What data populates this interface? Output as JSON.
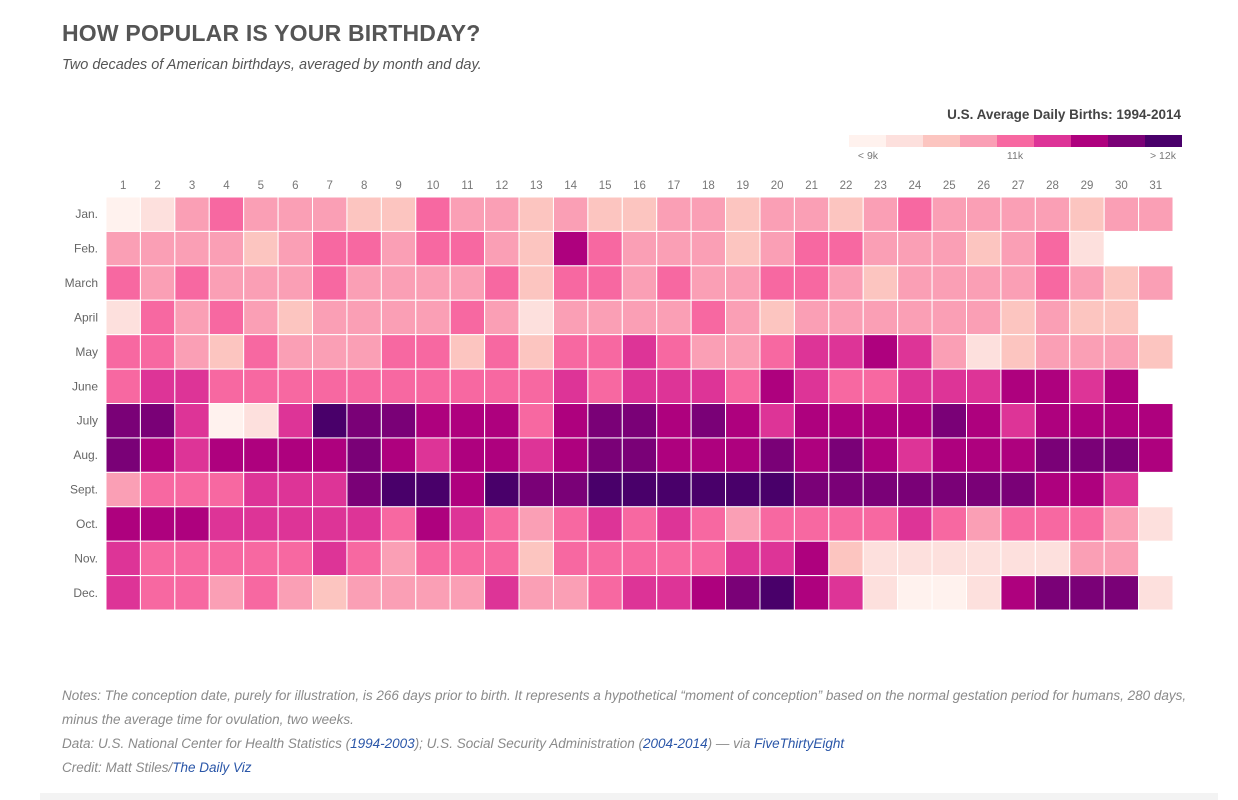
{
  "header": {
    "title": "HOW POPULAR IS YOUR BIRTHDAY?",
    "subtitle": "Two decades of American birthdays, averaged by month and day."
  },
  "chart_data": {
    "type": "heatmap",
    "title": "HOW POPULAR IS YOUR BIRTHDAY?",
    "legend": {
      "title": "U.S. Average Daily Births: 1994-2014",
      "placement": "top-right",
      "labels": [
        "< 9k",
        "11k",
        "> 12k"
      ],
      "colors": [
        "#fff2ee",
        "#fde0dd",
        "#fcc5c0",
        "#fa9fb5",
        "#f768a1",
        "#dd3497",
        "#ae017e",
        "#7a0177",
        "#49006a"
      ]
    },
    "days": [
      "1",
      "2",
      "3",
      "4",
      "5",
      "6",
      "7",
      "8",
      "9",
      "10",
      "11",
      "12",
      "13",
      "14",
      "15",
      "16",
      "17",
      "18",
      "19",
      "20",
      "21",
      "22",
      "23",
      "24",
      "25",
      "26",
      "27",
      "28",
      "29",
      "30",
      "31"
    ],
    "months": [
      "Jan.",
      "Feb.",
      "March",
      "April",
      "May",
      "June",
      "July",
      "Aug.",
      "Sept.",
      "Oct.",
      "Nov.",
      "Dec."
    ],
    "levels": [
      [
        0,
        1,
        3,
        4,
        3,
        3,
        3,
        2,
        2,
        4,
        3,
        3,
        2,
        3,
        2,
        2,
        3,
        3,
        2,
        3,
        3,
        2,
        3,
        4,
        3,
        3,
        3,
        3,
        2,
        3,
        3
      ],
      [
        3,
        3,
        3,
        3,
        2,
        3,
        4,
        4,
        3,
        4,
        4,
        3,
        2,
        6,
        4,
        3,
        3,
        3,
        2,
        3,
        4,
        4,
        3,
        3,
        3,
        2,
        3,
        4,
        1,
        null,
        null
      ],
      [
        4,
        3,
        4,
        3,
        3,
        3,
        4,
        3,
        3,
        3,
        3,
        4,
        2,
        4,
        4,
        3,
        4,
        3,
        3,
        4,
        4,
        3,
        2,
        3,
        3,
        3,
        3,
        4,
        3,
        2,
        3
      ],
      [
        1,
        4,
        3,
        4,
        3,
        2,
        3,
        3,
        3,
        3,
        4,
        3,
        1,
        3,
        3,
        3,
        3,
        4,
        3,
        2,
        3,
        3,
        3,
        3,
        3,
        3,
        2,
        3,
        2,
        2,
        null
      ],
      [
        4,
        4,
        3,
        2,
        4,
        3,
        3,
        3,
        4,
        4,
        2,
        4,
        2,
        4,
        4,
        5,
        4,
        3,
        3,
        4,
        5,
        5,
        6,
        5,
        3,
        1,
        2,
        3,
        3,
        3,
        2
      ],
      [
        4,
        5,
        5,
        4,
        4,
        4,
        4,
        4,
        4,
        4,
        4,
        4,
        4,
        5,
        4,
        5,
        5,
        5,
        4,
        6,
        5,
        4,
        4,
        5,
        5,
        5,
        6,
        6,
        5,
        6,
        null
      ],
      [
        7,
        7,
        5,
        0,
        1,
        5,
        8,
        7,
        7,
        6,
        6,
        6,
        4,
        6,
        7,
        7,
        6,
        7,
        6,
        5,
        6,
        6,
        6,
        6,
        7,
        6,
        5,
        6,
        6,
        6,
        6
      ],
      [
        7,
        6,
        5,
        6,
        6,
        6,
        6,
        7,
        6,
        5,
        6,
        6,
        5,
        6,
        7,
        7,
        6,
        6,
        6,
        7,
        6,
        7,
        6,
        5,
        6,
        6,
        6,
        7,
        7,
        7,
        6
      ],
      [
        3,
        4,
        4,
        4,
        5,
        5,
        5,
        7,
        8,
        8,
        6,
        8,
        7,
        7,
        8,
        8,
        8,
        8,
        8,
        8,
        7,
        7,
        7,
        7,
        7,
        7,
        7,
        6,
        6,
        5,
        null
      ],
      [
        6,
        6,
        6,
        5,
        5,
        5,
        5,
        5,
        4,
        6,
        5,
        4,
        3,
        4,
        5,
        4,
        5,
        4,
        3,
        4,
        4,
        4,
        4,
        5,
        4,
        3,
        4,
        4,
        4,
        3,
        1
      ],
      [
        5,
        4,
        4,
        4,
        4,
        4,
        5,
        4,
        3,
        4,
        4,
        4,
        2,
        4,
        4,
        4,
        4,
        4,
        5,
        5,
        6,
        2,
        1,
        1,
        1,
        1,
        1,
        1,
        3,
        3,
        null
      ],
      [
        5,
        4,
        4,
        3,
        4,
        3,
        2,
        3,
        3,
        3,
        3,
        5,
        3,
        3,
        4,
        5,
        5,
        6,
        7,
        8,
        6,
        5,
        1,
        0,
        0,
        1,
        6,
        7,
        7,
        7,
        1
      ]
    ]
  },
  "footer": {
    "notes": "Notes: The conception date, purely for illustration, is 266 days prior to birth. It represents a hypothetical “moment of conception” based on the normal gestation period for humans, 280 days, minus the average time for ovulation, two weeks.",
    "data_prefix": "Data: U.S. National Center for Health Statistics (",
    "data_link1": "1994-2003",
    "data_mid": "); U.S. Social Security Administration (",
    "data_link2": "2004-2014",
    "data_mid2": ") — via ",
    "data_link3": "FiveThirtyEight",
    "credit_prefix": "Credit: Matt Stiles/",
    "credit_link": "The Daily Viz"
  }
}
